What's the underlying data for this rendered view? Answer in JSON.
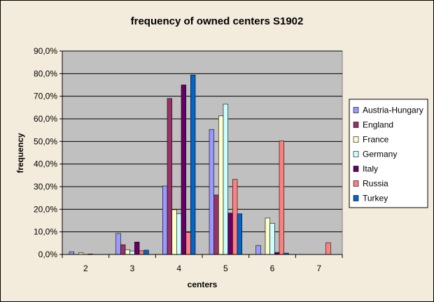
{
  "chart_data": {
    "type": "bar",
    "title": "frequency of owned centers S1902",
    "xlabel": "centers",
    "ylabel": "frequency",
    "categories": [
      "2",
      "3",
      "4",
      "5",
      "6",
      "7"
    ],
    "ylim": [
      0,
      90
    ],
    "yticks": [
      "0,0%",
      "10,0%",
      "20,0%",
      "30,0%",
      "40,0%",
      "50,0%",
      "60,0%",
      "70,0%",
      "80,0%",
      "90,0%"
    ],
    "ytick_values": [
      0,
      10,
      20,
      30,
      40,
      50,
      60,
      70,
      80,
      90
    ],
    "grid": true,
    "legend_position": "right",
    "series": [
      {
        "name": "Austria-Hungary",
        "color": "#9999ff",
        "values": [
          1.2,
          9.3,
          30.3,
          55.3,
          4.0,
          0.0
        ]
      },
      {
        "name": "England",
        "color": "#993366",
        "values": [
          0.0,
          4.3,
          69.0,
          26.3,
          0.0,
          0.0
        ]
      },
      {
        "name": "France",
        "color": "#ffffcc",
        "values": [
          0.7,
          2.1,
          19.8,
          61.3,
          16.1,
          0.0
        ]
      },
      {
        "name": "Germany",
        "color": "#ccffff",
        "values": [
          0.0,
          1.5,
          18.0,
          66.5,
          13.8,
          0.0
        ]
      },
      {
        "name": "Italy",
        "color": "#660066",
        "values": [
          0.2,
          5.5,
          75.0,
          18.3,
          0.9,
          0.0
        ]
      },
      {
        "name": "Russia",
        "color": "#ff8080",
        "values": [
          0.0,
          1.6,
          9.8,
          33.2,
          50.2,
          5.2
        ]
      },
      {
        "name": "Turkey",
        "color": "#0066cc",
        "values": [
          0.0,
          1.9,
          79.4,
          18.0,
          0.6,
          0.0
        ]
      }
    ]
  }
}
